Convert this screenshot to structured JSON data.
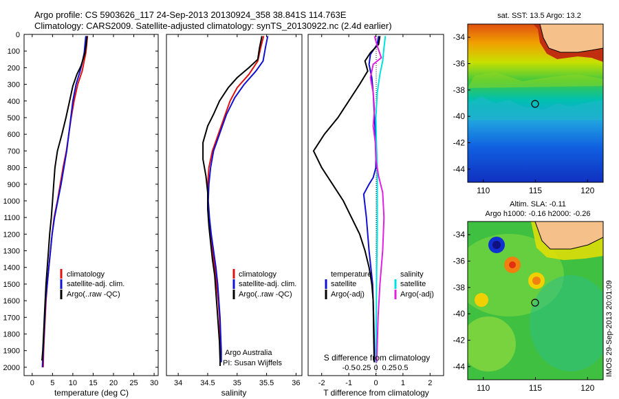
{
  "title_line1": "Argo profile: CS 5903626_117 24-Sep-2013 20130924_358 38.841S 114.763E",
  "title_line2": "Climatology: CARS2009. Satellite-adjusted climatology: synTS_20130922.nc (2.4d earlier)",
  "credit": "Argo Australia",
  "pi": "PI: Susan Wijffels",
  "footer": "IMOS 29-Sep-2013 20:01:09",
  "colors": {
    "clim": "#e01010",
    "sat": "#1010d0",
    "argo": "#000000",
    "sat_s": "#00e0e0",
    "argo_s": "#e020e0",
    "land": "#f5c08a"
  },
  "depth_ticks": [
    "0",
    "100",
    "200",
    "300",
    "400",
    "500",
    "600",
    "700",
    "800",
    "900",
    "1000",
    "1100",
    "1200",
    "1300",
    "1400",
    "1500",
    "1600",
    "1700",
    "1800",
    "1900",
    "2000"
  ],
  "chart_data": [
    {
      "id": "temperature",
      "type": "line",
      "xlabel": "temperature (deg C)",
      "ylabel": "",
      "xlim": [
        -2,
        31
      ],
      "ylim": [
        2050,
        0
      ],
      "xticks": [
        "0",
        "5",
        "10",
        "15",
        "20",
        "25",
        "30"
      ],
      "legend": [
        "climatology",
        "satellite-adj. clim.",
        "Argo(..raw -QC)"
      ],
      "series": [
        {
          "name": "climatology",
          "color": "#e01010",
          "points": [
            [
              13.6,
              10
            ],
            [
              13.4,
              60
            ],
            [
              13.2,
              110
            ],
            [
              12.7,
              170
            ],
            [
              12.3,
              220
            ],
            [
              11.2,
              300
            ],
            [
              10.3,
              400
            ],
            [
              9.6,
              500
            ],
            [
              9.0,
              600
            ],
            [
              8.4,
              700
            ],
            [
              7.6,
              800
            ],
            [
              6.9,
              900
            ],
            [
              6.2,
              1000
            ],
            [
              5.4,
              1100
            ],
            [
              4.9,
              1200
            ],
            [
              4.5,
              1300
            ],
            [
              4.1,
              1400
            ],
            [
              3.7,
              1500
            ],
            [
              3.4,
              1600
            ],
            [
              3.2,
              1700
            ],
            [
              3.0,
              1800
            ],
            [
              2.8,
              1900
            ],
            [
              2.7,
              2000
            ]
          ]
        },
        {
          "name": "satellite-adj. clim.",
          "color": "#1010d0",
          "points": [
            [
              13.2,
              10
            ],
            [
              13.0,
              60
            ],
            [
              12.8,
              110
            ],
            [
              12.3,
              170
            ],
            [
              11.8,
              220
            ],
            [
              10.8,
              300
            ],
            [
              10.0,
              400
            ],
            [
              9.5,
              500
            ],
            [
              9.0,
              600
            ],
            [
              8.5,
              700
            ],
            [
              7.8,
              800
            ],
            [
              7.1,
              900
            ],
            [
              6.3,
              1000
            ],
            [
              5.5,
              1100
            ],
            [
              4.9,
              1200
            ],
            [
              4.5,
              1300
            ],
            [
              4.1,
              1400
            ],
            [
              3.7,
              1500
            ],
            [
              3.3,
              1600
            ],
            [
              3.1,
              1700
            ],
            [
              2.9,
              1800
            ],
            [
              2.7,
              1900
            ],
            [
              2.5,
              2000
            ]
          ]
        },
        {
          "name": "Argo(..raw -QC)",
          "color": "#000000",
          "points": [
            [
              13.5,
              10
            ],
            [
              13.3,
              60
            ],
            [
              13.0,
              110
            ],
            [
              12.5,
              150
            ],
            [
              12.0,
              190
            ],
            [
              11.0,
              240
            ],
            [
              10.0,
              310
            ],
            [
              9.2,
              400
            ],
            [
              8.3,
              500
            ],
            [
              7.3,
              600
            ],
            [
              6.2,
              700
            ],
            [
              5.6,
              800
            ],
            [
              5.3,
              900
            ],
            [
              5.0,
              1000
            ],
            [
              4.7,
              1100
            ],
            [
              4.3,
              1200
            ],
            [
              4.0,
              1300
            ],
            [
              3.7,
              1400
            ],
            [
              3.4,
              1500
            ],
            [
              3.2,
              1600
            ],
            [
              3.0,
              1700
            ],
            [
              2.8,
              1800
            ],
            [
              2.6,
              1900
            ],
            [
              2.4,
              1960
            ]
          ]
        }
      ]
    },
    {
      "id": "salinity",
      "type": "line",
      "xlabel": "salinity",
      "ylabel": "",
      "xlim": [
        33.8,
        36.1
      ],
      "ylim": [
        2050,
        0
      ],
      "xticks": [
        "34",
        "34.5",
        "35",
        "35.5",
        "36"
      ],
      "legend": [
        "climatology",
        "satellite-adj. clim.",
        "Argo(..raw -QC)"
      ],
      "series": [
        {
          "name": "climatology",
          "color": "#e01010",
          "points": [
            [
              35.45,
              10
            ],
            [
              35.4,
              80
            ],
            [
              35.35,
              160
            ],
            [
              35.2,
              240
            ],
            [
              35.0,
              320
            ],
            [
              34.88,
              400
            ],
            [
              34.78,
              500
            ],
            [
              34.68,
              600
            ],
            [
              34.58,
              700
            ],
            [
              34.52,
              800
            ],
            [
              34.5,
              900
            ],
            [
              34.5,
              1000
            ],
            [
              34.52,
              1100
            ],
            [
              34.55,
              1200
            ],
            [
              34.58,
              1300
            ],
            [
              34.62,
              1400
            ],
            [
              34.65,
              1500
            ],
            [
              34.68,
              1600
            ],
            [
              34.7,
              1700
            ],
            [
              34.71,
              1800
            ],
            [
              34.72,
              1900
            ],
            [
              34.72,
              1970
            ]
          ]
        },
        {
          "name": "satellite-adj. clim.",
          "color": "#1010d0",
          "points": [
            [
              35.52,
              10
            ],
            [
              35.48,
              80
            ],
            [
              35.44,
              160
            ],
            [
              35.32,
              220
            ],
            [
              35.12,
              300
            ],
            [
              34.96,
              380
            ],
            [
              34.82,
              480
            ],
            [
              34.72,
              580
            ],
            [
              34.6,
              700
            ],
            [
              34.55,
              800
            ],
            [
              34.52,
              900
            ],
            [
              34.51,
              1000
            ],
            [
              34.53,
              1100
            ],
            [
              34.56,
              1200
            ],
            [
              34.6,
              1300
            ],
            [
              34.64,
              1400
            ],
            [
              34.67,
              1500
            ],
            [
              34.69,
              1600
            ],
            [
              34.71,
              1700
            ],
            [
              34.72,
              1800
            ],
            [
              34.73,
              1900
            ],
            [
              34.73,
              1970
            ]
          ]
        },
        {
          "name": "Argo(..raw -QC)",
          "color": "#000000",
          "points": [
            [
              35.42,
              10
            ],
            [
              35.38,
              80
            ],
            [
              35.35,
              150
            ],
            [
              35.2,
              200
            ],
            [
              35.0,
              260
            ],
            [
              34.85,
              320
            ],
            [
              34.7,
              400
            ],
            [
              34.6,
              480
            ],
            [
              34.5,
              550
            ],
            [
              34.42,
              650
            ],
            [
              34.42,
              750
            ],
            [
              34.47,
              850
            ],
            [
              34.5,
              950
            ],
            [
              34.5,
              1050
            ],
            [
              34.52,
              1150
            ],
            [
              34.55,
              1250
            ],
            [
              34.58,
              1350
            ],
            [
              34.62,
              1450
            ],
            [
              34.64,
              1550
            ],
            [
              34.66,
              1650
            ],
            [
              34.68,
              1750
            ],
            [
              34.7,
              1850
            ],
            [
              34.71,
              1950
            ]
          ]
        }
      ]
    },
    {
      "id": "differences",
      "type": "line",
      "xlabel": "T difference from climatology",
      "ylabel": "",
      "xlim": [
        -2.5,
        2.5
      ],
      "ylim": [
        2050,
        0
      ],
      "xticks": [
        "-2",
        "-1",
        "0",
        "1",
        "2"
      ],
      "top_label": "S difference from climatology",
      "top_ticks": [
        "-0.5",
        "-0.25",
        "0",
        "0.25",
        "0.5"
      ],
      "legend_t_title": "temperature",
      "legend_t": [
        "satellite",
        "Argo(-adj)"
      ],
      "legend_s_title": "salinity",
      "legend_s": [
        "satellite",
        "Argo(-adj)"
      ],
      "series": [
        {
          "name": "satellite",
          "color": "#1010d0",
          "points": [
            [
              0.1,
              10
            ],
            [
              0.05,
              60
            ],
            [
              -0.2,
              120
            ],
            [
              -0.25,
              180
            ],
            [
              -0.15,
              260
            ],
            [
              -0.1,
              350
            ],
            [
              -0.05,
              500
            ],
            [
              0.0,
              650
            ],
            [
              0.0,
              800
            ],
            [
              -0.1,
              860
            ],
            [
              -0.25,
              900
            ],
            [
              -0.45,
              960
            ],
            [
              -0.35,
              1100
            ],
            [
              -0.25,
              1300
            ],
            [
              -0.12,
              1500
            ],
            [
              -0.08,
              1700
            ],
            [
              -0.05,
              1900
            ],
            [
              -0.05,
              1970
            ]
          ]
        },
        {
          "name": "Argo(-adj)",
          "color": "#000000",
          "points": [
            [
              0.15,
              10
            ],
            [
              0.1,
              60
            ],
            [
              -0.2,
              110
            ],
            [
              -0.4,
              160
            ],
            [
              -0.3,
              220
            ],
            [
              -0.6,
              300
            ],
            [
              -1.0,
              400
            ],
            [
              -1.4,
              500
            ],
            [
              -1.9,
              600
            ],
            [
              -2.3,
              700
            ],
            [
              -2.0,
              800
            ],
            [
              -1.6,
              900
            ],
            [
              -1.2,
              1000
            ],
            [
              -0.9,
              1100
            ],
            [
              -0.6,
              1200
            ],
            [
              -0.4,
              1300
            ],
            [
              -0.25,
              1400
            ],
            [
              -0.15,
              1500
            ],
            [
              -0.1,
              1600
            ],
            [
              -0.08,
              1800
            ],
            [
              -0.06,
              1970
            ]
          ]
        },
        {
          "name": "satellite",
          "color": "#00e0e0",
          "points": [
            [
              0.35,
              10
            ],
            [
              0.3,
              80
            ],
            [
              0.25,
              160
            ],
            [
              0.15,
              240
            ],
            [
              0.05,
              350
            ],
            [
              0.0,
              500
            ],
            [
              0.02,
              650
            ],
            [
              0.05,
              800
            ],
            [
              0.05,
              1000
            ],
            [
              0.05,
              1200
            ],
            [
              0.03,
              1400
            ],
            [
              0.02,
              1600
            ],
            [
              0.01,
              1800
            ],
            [
              0.01,
              1970
            ]
          ]
        },
        {
          "name": "Argo(-adj)",
          "color": "#e020e0",
          "points": [
            [
              -0.05,
              10
            ],
            [
              0.05,
              70
            ],
            [
              0.2,
              140
            ],
            [
              -0.1,
              180
            ],
            [
              -0.2,
              260
            ],
            [
              -0.1,
              350
            ],
            [
              -0.05,
              450
            ],
            [
              -0.1,
              550
            ],
            [
              -0.02,
              650
            ],
            [
              0.0,
              750
            ],
            [
              0.1,
              850
            ],
            [
              0.25,
              950
            ],
            [
              0.3,
              1100
            ],
            [
              0.25,
              1300
            ],
            [
              0.15,
              1500
            ],
            [
              0.08,
              1700
            ],
            [
              0.03,
              1970
            ]
          ]
        }
      ]
    },
    {
      "id": "sst_map",
      "type": "heatmap",
      "title": "sat. SST: 13.5 Argo: 13.2",
      "xticks": [
        "110",
        "115",
        "120"
      ],
      "yticks": [
        "-34",
        "-36",
        "-38",
        "-40",
        "-42",
        "-44"
      ],
      "xlim": [
        108.5,
        121.5
      ],
      "ylim": [
        -45,
        -33
      ]
    },
    {
      "id": "sla_map",
      "type": "heatmap",
      "title_line1": "Altim. SLA: -0.11",
      "title_line2": "Argo h1000: -0.16 h2000: -0.26",
      "xticks": [
        "110",
        "115",
        "120"
      ],
      "yticks": [
        "-34",
        "-36",
        "-38",
        "-40",
        "-42",
        "-44"
      ],
      "xlim": [
        108.5,
        121.5
      ],
      "ylim": [
        -45,
        -33
      ]
    }
  ]
}
